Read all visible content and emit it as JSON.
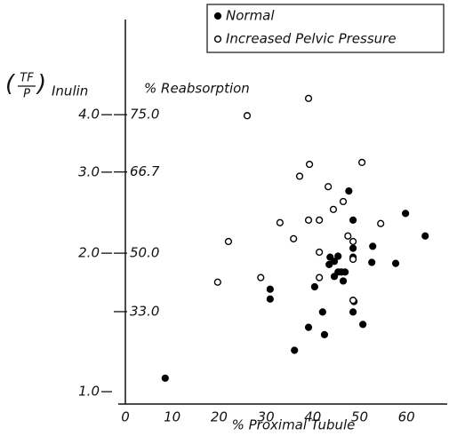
{
  "chart_data": {
    "type": "scatter",
    "y_label": {
      "numerator": "TF",
      "denominator": "P",
      "text": "Inulin"
    },
    "y2_label": "% Reabsorption",
    "x_label": "% Proximal Tubule",
    "xlim": [
      0,
      68.7
    ],
    "xticks": [
      0,
      10,
      20,
      30,
      40,
      50,
      60
    ],
    "ylim": [
      0.94,
      6.44
    ],
    "yscale": "log",
    "yticks": [
      {
        "value": 1,
        "label": "1.0"
      },
      {
        "value": 2,
        "label": "2.0"
      },
      {
        "value": 3,
        "label": "3.0"
      },
      {
        "value": 4,
        "label": "4.0"
      }
    ],
    "y2scale": "reabsorption",
    "y2ticks": [
      {
        "value": 33,
        "label": "33.0"
      },
      {
        "value": 50,
        "label": "50.0"
      },
      {
        "value": 66.7,
        "label": "66.7"
      },
      {
        "value": 75,
        "label": "75.0"
      }
    ],
    "legend": "top-right",
    "series": [
      {
        "name": "Normal",
        "color": "#000000",
        "marker": "filled",
        "x": [
          8.5,
          30.9,
          30.9,
          36.1,
          39.1,
          40.4,
          42.1,
          42.5,
          43.5,
          43.7,
          44.6,
          45.4,
          44.6,
          45.4,
          46.1,
          46.5,
          46.9,
          47.7,
          48.6,
          48.6,
          48.6,
          48.6,
          48.8,
          50.7,
          52.6,
          52.8,
          57.7,
          59.8,
          64.0
        ],
        "values": [
          1.07,
          1.67,
          1.59,
          1.23,
          1.38,
          1.69,
          1.49,
          1.33,
          1.89,
          1.96,
          1.92,
          1.97,
          1.78,
          1.82,
          1.82,
          1.74,
          1.82,
          2.73,
          2.36,
          1.96,
          2.05,
          1.49,
          1.57,
          1.4,
          1.91,
          2.07,
          1.9,
          2.44,
          2.18
        ]
      },
      {
        "name": "Increased Pelvic Pressure",
        "color": "#000000",
        "marker": "open",
        "x": [
          19.7,
          22.0,
          28.9,
          33.0,
          35.9,
          26.0,
          39.1,
          37.2,
          39.3,
          39.1,
          41.4,
          41.4,
          41.4,
          43.3,
          44.4,
          46.5,
          47.5,
          48.6,
          48.6,
          48.6,
          50.5,
          54.5
        ],
        "values": [
          1.73,
          2.12,
          1.77,
          2.33,
          2.15,
          3.98,
          4.34,
          2.94,
          3.12,
          2.36,
          2.36,
          2.01,
          1.77,
          2.79,
          2.49,
          2.59,
          2.18,
          2.12,
          1.94,
          1.58,
          3.15,
          2.32
        ]
      }
    ]
  }
}
